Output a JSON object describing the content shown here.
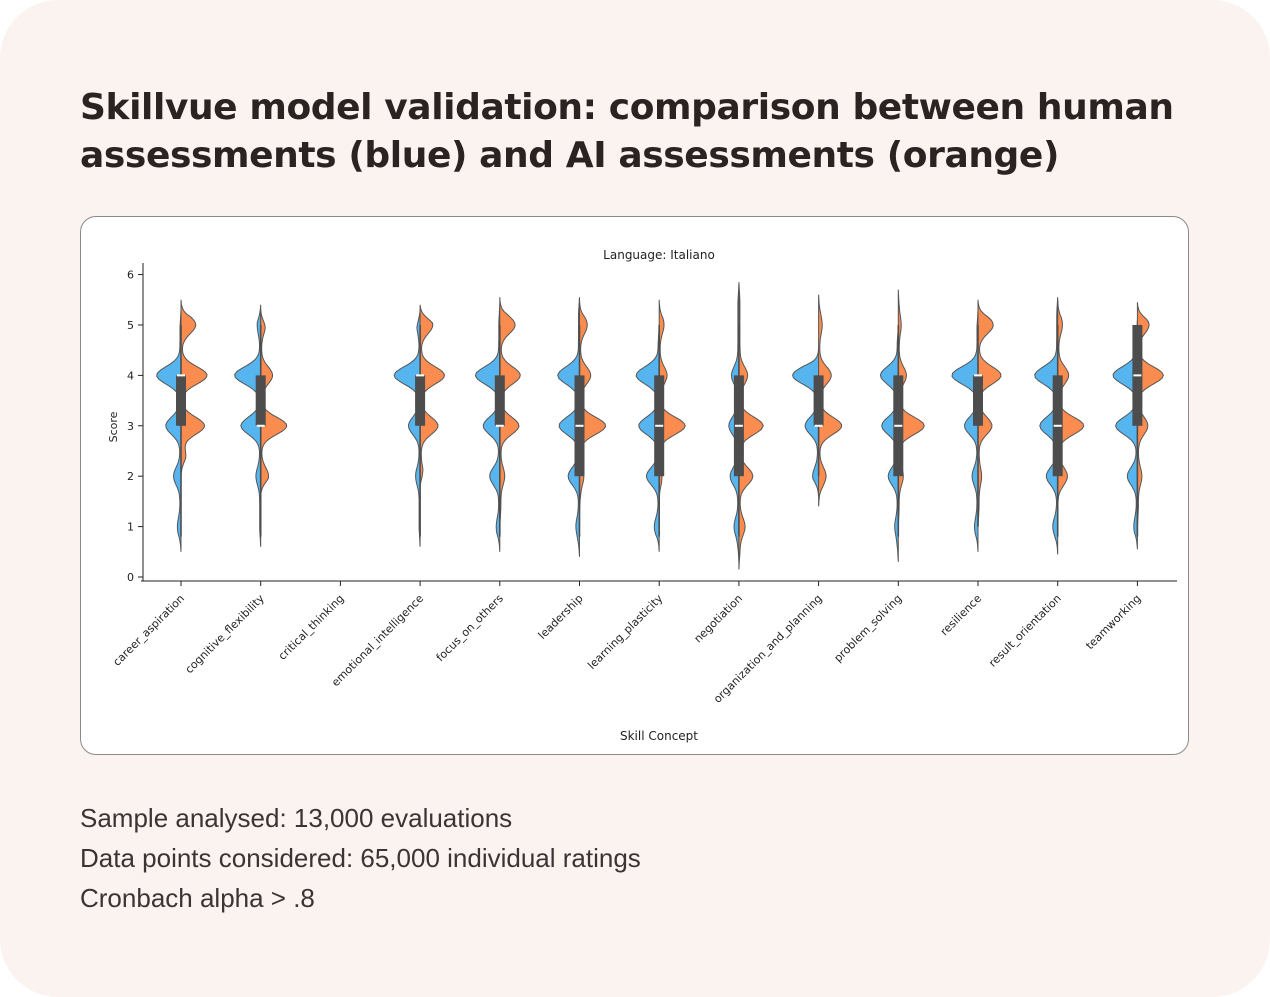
{
  "title_lines": [
    "Skillvue model validation: comparison between human",
    "assessments (blue) and AI assessments (orange)"
  ],
  "stats": [
    "Sample analysed: 13,000 evaluations",
    "Data points considered: 65,000 individual ratings",
    "Cronbach alpha > .8"
  ],
  "colors": {
    "human": "#56b4ee",
    "ai": "#fb8c4f",
    "box": "#4d4d4d",
    "outline": "#555555"
  },
  "chart_data": {
    "type": "split-violin",
    "title": "Language: Italiano",
    "xlabel": "Skill Concept",
    "ylabel": "Score",
    "ylim": [
      0,
      6.15
    ],
    "yticks": [
      0,
      1,
      2,
      3,
      4,
      5,
      6
    ],
    "series_names": [
      "Human assessments (blue)",
      "AI assessments (orange)"
    ],
    "categories": [
      {
        "name": "career_aspiration",
        "human": {
          "min": 0.5,
          "max": 5.3,
          "peaks": [
            [
              4,
              0.9
            ],
            [
              3,
              0.55
            ],
            [
              2,
              0.25
            ],
            [
              1,
              0.1
            ]
          ]
        },
        "ai": {
          "min": 2.0,
          "max": 5.5,
          "peaks": [
            [
              5,
              0.55
            ],
            [
              4,
              1.0
            ],
            [
              3,
              0.9
            ],
            [
              2.4,
              0.15
            ]
          ]
        },
        "q1": 3,
        "median": 4,
        "q3": 4,
        "whisker": [
          0.8,
          5
        ]
      },
      {
        "name": "cognitive_flexibility",
        "human": {
          "min": 0.6,
          "max": 5.4,
          "peaks": [
            [
              4,
              1.0
            ],
            [
              3,
              0.75
            ],
            [
              2,
              0.15
            ],
            [
              5,
              0.1
            ]
          ]
        },
        "ai": {
          "min": 1.6,
          "max": 5.3,
          "peaks": [
            [
              3,
              1.25
            ],
            [
              4,
              0.55
            ],
            [
              2,
              0.35
            ],
            [
              5,
              0.2
            ]
          ]
        },
        "q1": 3,
        "median": 3,
        "q3": 4,
        "whisker": [
          0.8,
          5
        ]
      },
      {
        "name": "critical_thinking",
        "empty": true
      },
      {
        "name": "emotional_intelligence",
        "human": {
          "min": 0.6,
          "max": 5.3,
          "peaks": [
            [
              4,
              1.05
            ],
            [
              3,
              0.45
            ],
            [
              2,
              0.15
            ],
            [
              5,
              0.1
            ]
          ]
        },
        "ai": {
          "min": 1.8,
          "max": 5.4,
          "peaks": [
            [
              4,
              0.9
            ],
            [
              3,
              0.65
            ],
            [
              5,
              0.45
            ],
            [
              2,
              0.1
            ]
          ]
        },
        "q1": 3,
        "median": 4,
        "q3": 4,
        "whisker": [
          0.8,
          5
        ]
      },
      {
        "name": "focus_on_others",
        "human": {
          "min": 0.5,
          "max": 5.4,
          "peaks": [
            [
              4,
              0.9
            ],
            [
              3,
              0.6
            ],
            [
              2,
              0.35
            ],
            [
              1,
              0.1
            ]
          ]
        },
        "ai": {
          "min": 1.0,
          "max": 5.55,
          "peaks": [
            [
              5,
              0.55
            ],
            [
              4,
              0.75
            ],
            [
              3,
              0.7
            ],
            [
              2,
              0.15
            ]
          ]
        },
        "q1": 3,
        "median": 3,
        "q3": 4,
        "whisker": [
          0.8,
          5
        ]
      },
      {
        "name": "leadership",
        "human": {
          "min": 0.4,
          "max": 5.55,
          "peaks": [
            [
              4,
              0.8
            ],
            [
              3,
              0.75
            ],
            [
              2,
              0.4
            ],
            [
              1,
              0.1
            ]
          ]
        },
        "ai": {
          "min": 1.3,
          "max": 5.5,
          "peaks": [
            [
              3,
              1.1
            ],
            [
              4,
              0.45
            ],
            [
              5,
              0.3
            ],
            [
              2,
              0.15
            ]
          ]
        },
        "q1": 2,
        "median": 3,
        "q3": 4,
        "whisker": [
          0.8,
          5
        ]
      },
      {
        "name": "learning_plasticity",
        "human": {
          "min": 0.5,
          "max": 5.0,
          "peaks": [
            [
              4,
              0.85
            ],
            [
              3,
              0.75
            ],
            [
              2,
              0.45
            ],
            [
              1,
              0.15
            ]
          ]
        },
        "ai": {
          "min": 1.5,
          "max": 5.5,
          "peaks": [
            [
              3,
              1.25
            ],
            [
              4,
              0.35
            ],
            [
              5,
              0.2
            ],
            [
              2,
              0.1
            ]
          ]
        },
        "q1": 2,
        "median": 3,
        "q3": 4,
        "whisker": [
          0.8,
          5
        ]
      },
      {
        "name": "negotiation",
        "human": {
          "min": 0.3,
          "max": 5.8,
          "peaks": [
            [
              3,
              0.35
            ],
            [
              2,
              0.3
            ],
            [
              4,
              0.25
            ],
            [
              1,
              0.15
            ]
          ]
        },
        "ai": {
          "min": 0.15,
          "max": 5.85,
          "peaks": [
            [
              3,
              0.9
            ],
            [
              2,
              0.5
            ],
            [
              1,
              0.2
            ],
            [
              4,
              0.3
            ]
          ]
        },
        "q1": 2,
        "median": 3,
        "q3": 4,
        "whisker": [
          0.8,
          5
        ]
      },
      {
        "name": "organization_and_planning",
        "human": {
          "min": 1.6,
          "max": 4.55,
          "peaks": [
            [
              4,
              1.0
            ],
            [
              3,
              0.5
            ],
            [
              2,
              0.2
            ]
          ]
        },
        "ai": {
          "min": 1.4,
          "max": 5.6,
          "peaks": [
            [
              3,
              0.85
            ],
            [
              4,
              0.45
            ],
            [
              5,
              0.1
            ],
            [
              2,
              0.25
            ]
          ]
        },
        "q1": 3,
        "median": 3,
        "q3": 4,
        "whisker": [
          2,
          4
        ]
      },
      {
        "name": "problem_solving",
        "human": {
          "min": 0.3,
          "max": 5.0,
          "peaks": [
            [
              4,
              0.65
            ],
            [
              3,
              0.6
            ],
            [
              2,
              0.35
            ],
            [
              1,
              0.1
            ]
          ]
        },
        "ai": {
          "min": 1.0,
          "max": 5.7,
          "peaks": [
            [
              3,
              1.2
            ],
            [
              4,
              0.35
            ],
            [
              2,
              0.2
            ],
            [
              5,
              0.1
            ]
          ]
        },
        "q1": 2,
        "median": 3,
        "q3": 4,
        "whisker": [
          0.8,
          5
        ]
      },
      {
        "name": "resilience",
        "human": {
          "min": 0.5,
          "max": 5.3,
          "peaks": [
            [
              4,
              1.0
            ],
            [
              3,
              0.5
            ],
            [
              2,
              0.2
            ],
            [
              1,
              0.1
            ]
          ]
        },
        "ai": {
          "min": 1.0,
          "max": 5.5,
          "peaks": [
            [
              4,
              0.85
            ],
            [
              5,
              0.55
            ],
            [
              3,
              0.5
            ],
            [
              2,
              0.1
            ]
          ]
        },
        "q1": 3,
        "median": 4,
        "q3": 4,
        "whisker": [
          1,
          5
        ]
      },
      {
        "name": "result_orientation",
        "human": {
          "min": 0.45,
          "max": 5.55,
          "peaks": [
            [
              4,
              0.85
            ],
            [
              3,
              0.65
            ],
            [
              2,
              0.4
            ],
            [
              1,
              0.15
            ]
          ]
        },
        "ai": {
          "min": 1.4,
          "max": 5.5,
          "peaks": [
            [
              3,
              1.0
            ],
            [
              4,
              0.4
            ],
            [
              2,
              0.35
            ],
            [
              5,
              0.15
            ]
          ]
        },
        "q1": 2,
        "median": 3,
        "q3": 4,
        "whisker": [
          0.8,
          5
        ]
      },
      {
        "name": "teamworking",
        "human": {
          "min": 0.55,
          "max": 5.1,
          "peaks": [
            [
              4,
              0.9
            ],
            [
              3,
              0.8
            ],
            [
              2,
              0.35
            ],
            [
              1,
              0.1
            ]
          ]
        },
        "ai": {
          "min": 1.0,
          "max": 5.45,
          "peaks": [
            [
              4,
              1.05
            ],
            [
              5,
              0.45
            ],
            [
              3,
              0.4
            ],
            [
              2,
              0.15
            ]
          ]
        },
        "q1": 3,
        "median": 4,
        "q3": 5,
        "whisker": [
          0.8,
          5
        ]
      }
    ]
  }
}
